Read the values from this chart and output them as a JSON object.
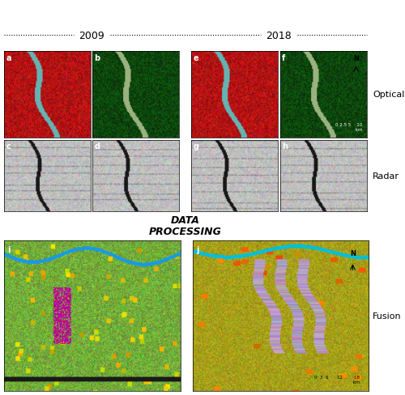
{
  "title_2009": "2009",
  "title_2018": "2018",
  "label_optical": "Optical",
  "label_radar": "Radar",
  "label_fusion": "Fusion",
  "label_data_processing": "DATA\nPROCESSING",
  "panel_labels": [
    "a",
    "b",
    "e",
    "f",
    "c",
    "d",
    "g",
    "h",
    "i",
    "j"
  ],
  "bg_color": "#ffffff",
  "border_color": "#000000",
  "dot_color": "#000000",
  "title_fontsize": 9,
  "panel_label_fontsize": 8,
  "side_label_fontsize": 9,
  "dp_fontsize": 10
}
